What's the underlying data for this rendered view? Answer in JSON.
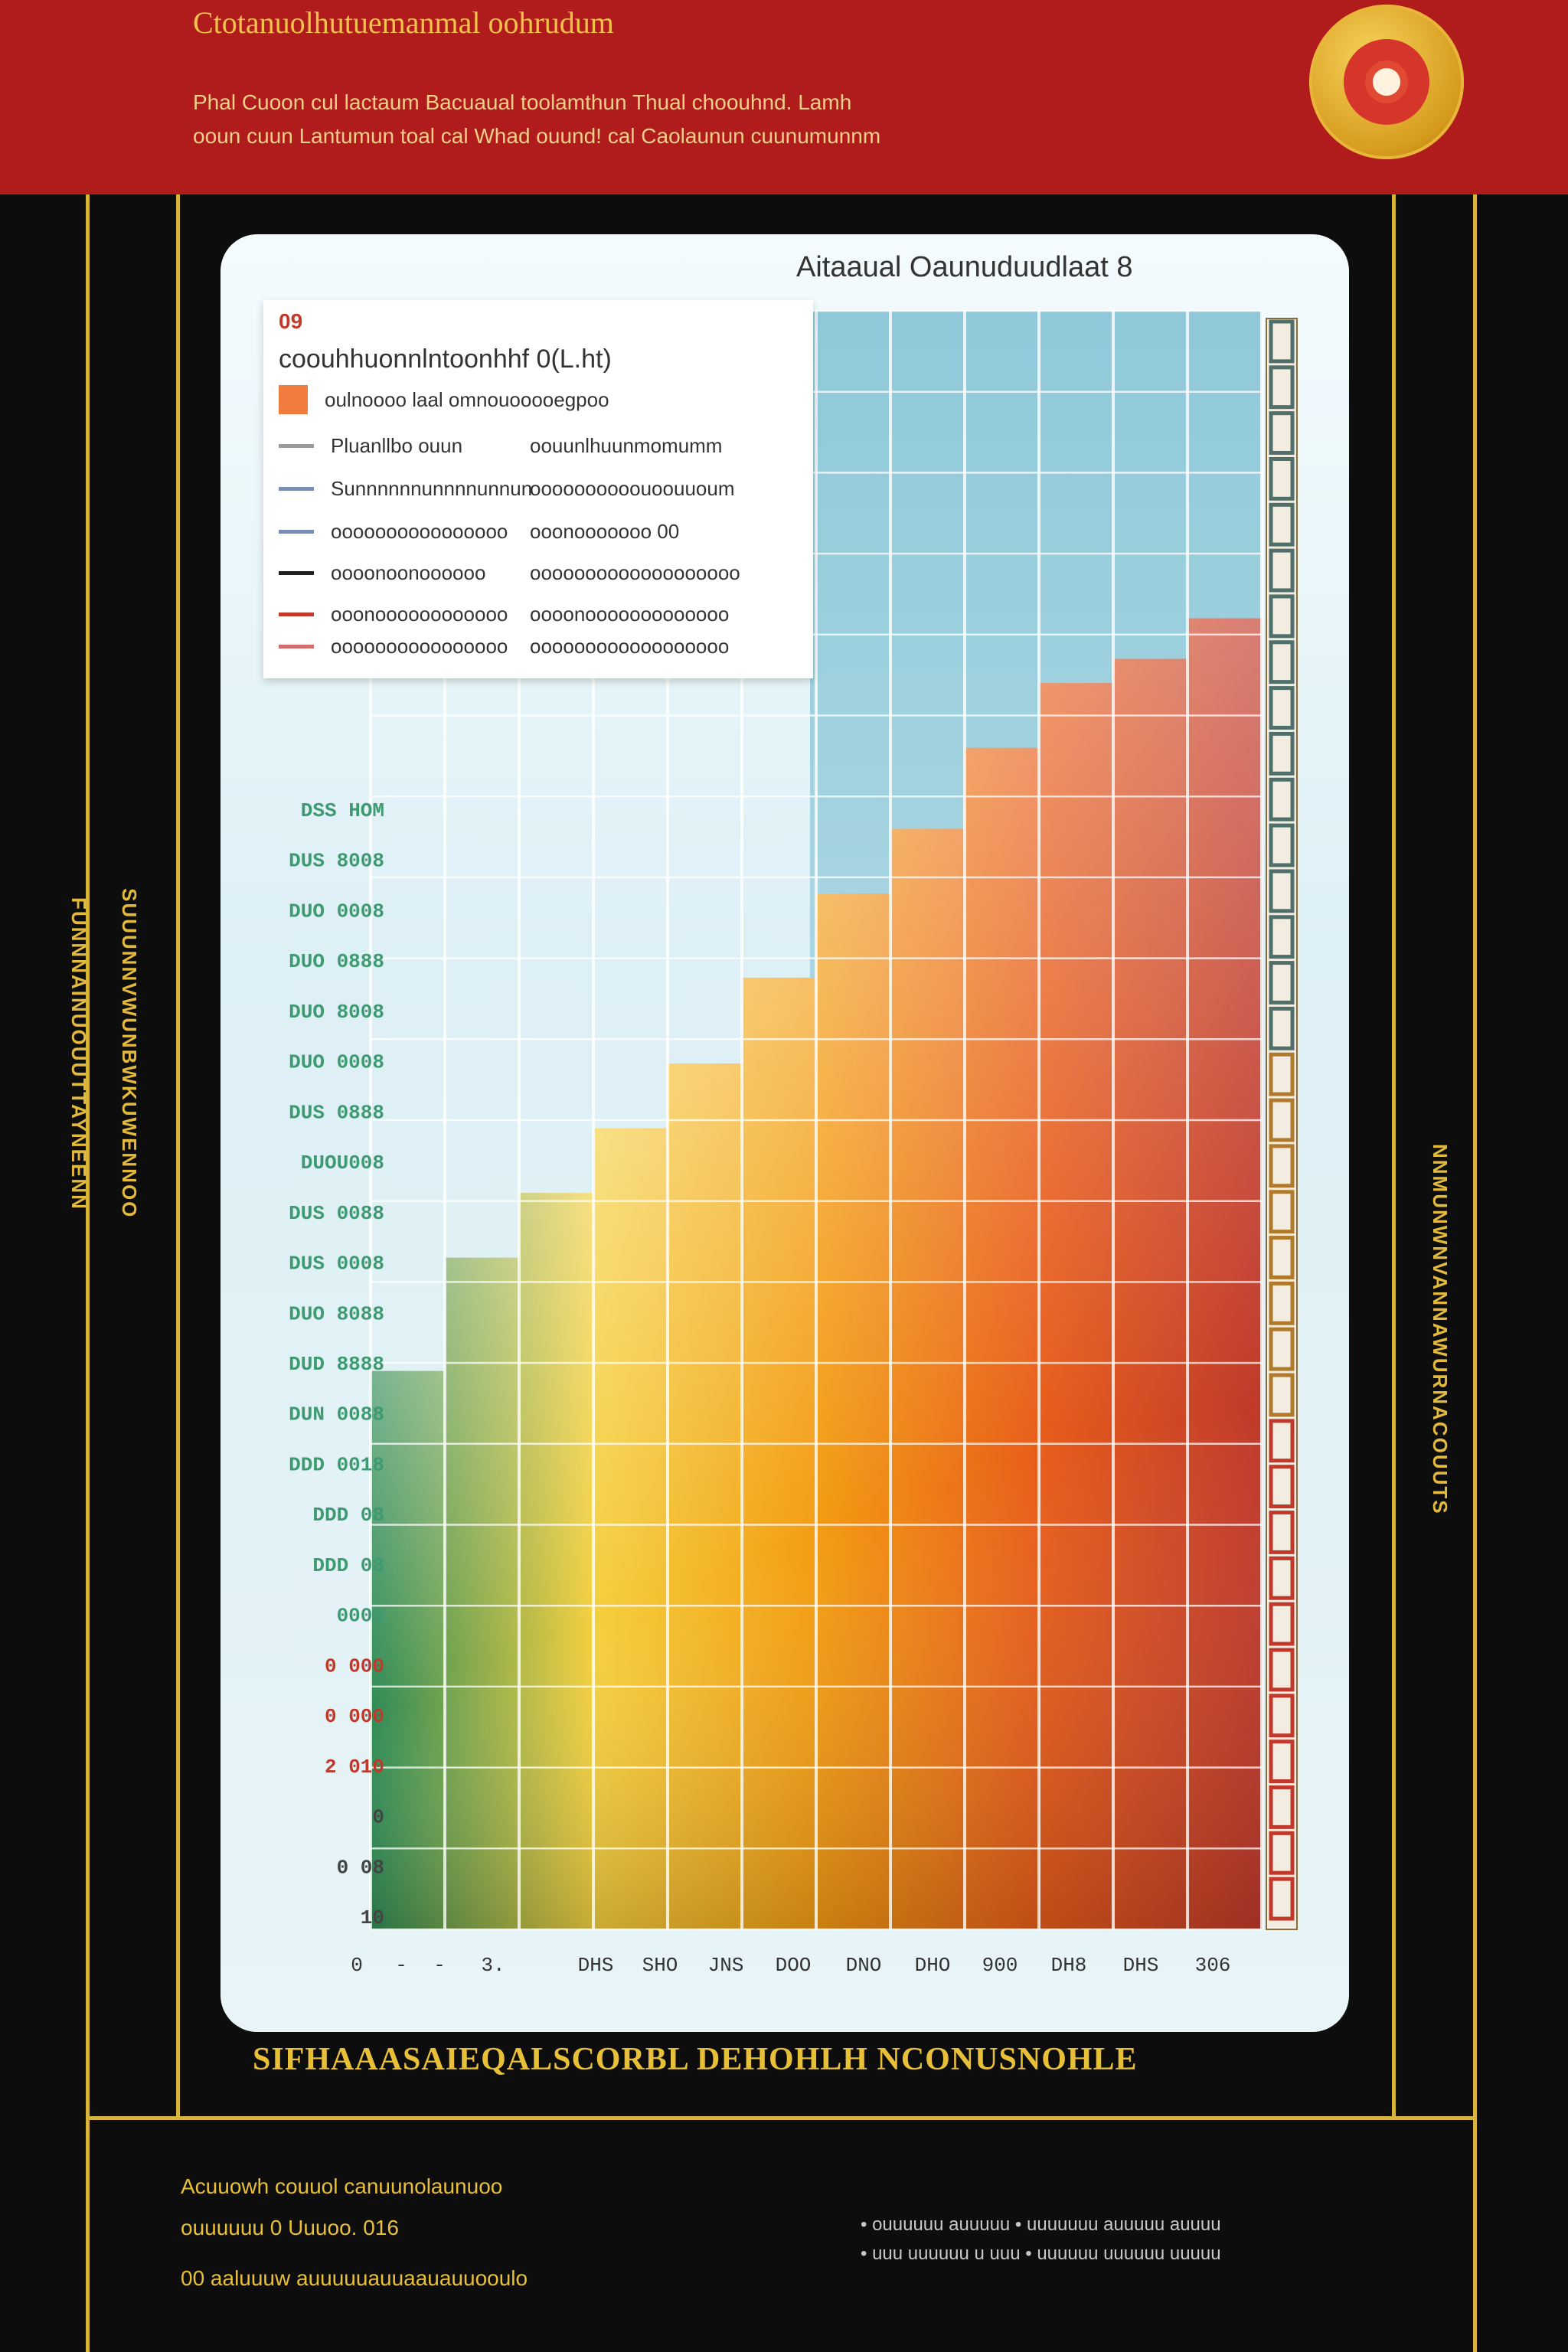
{
  "header": {
    "title": "Ctotanuolhutuemanmal oohrudum",
    "subtitle_line1": "Phal Cuoon cul lactaum Bacuaual toolamthun Thual choouhnd. Lamh",
    "subtitle_line2": "ooun cuun Lantumun toal cal Whad ouund! cal Caolaunun cuunumunnm"
  },
  "side_text_left_a": "FUNNNAINUOUUTTAYNEENN",
  "side_text_left_b": "SUUUNNVWUNBWKUWENNOO",
  "side_text_right": "NNMUNWNVANNAWURNACOUUTS",
  "top_note": "Aitaaual Oaunuduudlaat 8",
  "legend": {
    "title": "09",
    "subtitle": "coouhhuonnlntoonhhf 0(L.ht)",
    "rows": [
      {
        "left": "oulnoooo laal omnouooooegpoo",
        "right": ""
      },
      {
        "left": "Pluanllbo ouun",
        "right": "oouunlhuunmomumm"
      },
      {
        "left": "Sunnnnnnunnnnunnun",
        "right": "oooooooooouoouuoum"
      },
      {
        "left": "oooooooooooooooo",
        "right": "ooonooooooo 00"
      },
      {
        "left": "oooonoonoooooo",
        "right": "ooooooooooooooooooo"
      },
      {
        "left": "ooonoooooooooooo",
        "right": "oooonooooooooooooo"
      },
      {
        "left": "oooooooooooooooo",
        "right": "oooooooooooooooooo"
      }
    ],
    "colors": [
      "#f07b3f",
      "#999999",
      "#7a8db5",
      "#222222",
      "#c0392b",
      "#d46a6a"
    ]
  },
  "chart_data": {
    "type": "bar",
    "title": "",
    "xlabel": "",
    "ylabel": "",
    "y_tick_labels": [
      "DSS HOM",
      "DUS 8008",
      "DUO 0008",
      "DUO 0888",
      "DUO 8008",
      "DUO 0008",
      "DUS 0888",
      "DUOU008",
      "DUS 0088",
      "DUS 0008",
      "DUO 8088",
      "DUD 8888",
      "DUN 0088",
      "DDD 0018",
      "DDD 08",
      "DDD 08",
      "0000",
      "0 000",
      "0 000",
      "2 010",
      "0",
      "0 08",
      "10"
    ],
    "x_tick_labels": [
      "0",
      "-",
      "-",
      "3.",
      "DHS",
      "SHO",
      "JNS",
      "DOO",
      "DNO",
      "DHO",
      "900",
      "DH8",
      "DHS",
      "306"
    ],
    "bar_count": 12,
    "bar_heights_fraction": [
      0.345,
      0.415,
      0.455,
      0.495,
      0.535,
      0.588,
      0.64,
      0.68,
      0.73,
      0.77,
      0.785,
      0.81
    ],
    "colors": [
      "#2e8b57",
      "#f4d03f",
      "#f39c12",
      "#e85d1a",
      "#c0392b"
    ]
  },
  "footer": {
    "headline": "SIFHAAASAIEQALSCORBL DEHOHLH NCONUSNOHLE",
    "left_lines": [
      "Acuuowh couuol canuunolaunuoo",
      "ouuuuuu 0 Uuuoo. 016",
      "00 aaluuuw auuuuuauuaauauuooulo"
    ],
    "right_lines": [
      "• ouuuuuu auuuuu   • uuuuuuu auuuuu auuuu",
      "• uuu uuuuuu u uuu   • uuuuuu uuuuuu uuuuu"
    ]
  }
}
